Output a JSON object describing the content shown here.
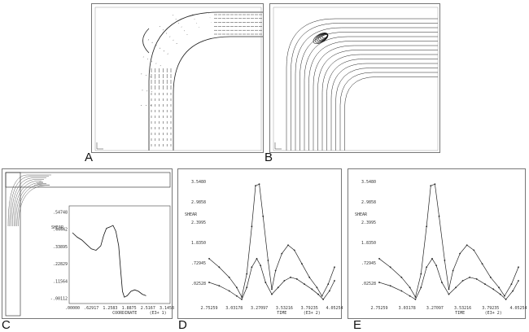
{
  "panels": {
    "A": {
      "letter": "A"
    },
    "B": {
      "letter": "B"
    },
    "C": {
      "letter": "C",
      "inset_xlabel": "COORDINATE",
      "inset_xunit": "(E3+ 1)",
      "inset_ylabel": "SHEAR",
      "inset_yticks": [
        ".54748",
        ".44442",
        ".33895",
        ".22829",
        ".11564",
        "-.00112"
      ],
      "inset_xticks": [
        ".00000",
        ".62917",
        "1.2583",
        "1.8875",
        "2.5167",
        "3.1458"
      ],
      "curve": [
        [
          0.0,
          0.45
        ],
        [
          0.05,
          0.42
        ],
        [
          0.1,
          0.4
        ],
        [
          0.15,
          0.37
        ],
        [
          0.2,
          0.34
        ],
        [
          0.25,
          0.33
        ],
        [
          0.3,
          0.36
        ],
        [
          0.33,
          0.43
        ],
        [
          0.36,
          0.48
        ],
        [
          0.4,
          0.49
        ],
        [
          0.43,
          0.5
        ],
        [
          0.46,
          0.46
        ],
        [
          0.49,
          0.36
        ],
        [
          0.51,
          0.2
        ],
        [
          0.53,
          0.05
        ],
        [
          0.55,
          0.01
        ],
        [
          0.58,
          0.02
        ],
        [
          0.62,
          0.05
        ],
        [
          0.66,
          0.06
        ],
        [
          0.7,
          0.05
        ],
        [
          0.74,
          0.03
        ],
        [
          0.78,
          0.02
        ]
      ]
    },
    "D": {
      "letter": "D",
      "ylabel": "SHEAR",
      "xlabel": "TIME",
      "xunit": "(E3+ 2)",
      "yticks": [
        "3.5480",
        "2.9858",
        "2.3995",
        "1.8350",
        ".72945",
        ".02528"
      ],
      "xticks": [
        "2.75259",
        "3.03178",
        "3.27097",
        "3.53216",
        "3.79235",
        "4.05254"
      ]
    },
    "E": {
      "letter": "E",
      "ylabel": "SHEAR",
      "xlabel": "TIME",
      "xunit": "(E3+ 2)",
      "yticks": [
        "3.5480",
        "2.9858",
        "2.3995",
        "1.8350",
        ".72945",
        ".02528"
      ],
      "xticks": [
        "2.75259",
        "3.03178",
        "3.27097",
        "3.53216",
        "3.79235",
        "4.05254"
      ]
    }
  },
  "time_series": {
    "upper": [
      [
        0.0,
        1.25
      ],
      [
        0.08,
        1.0
      ],
      [
        0.16,
        0.7
      ],
      [
        0.22,
        0.4
      ],
      [
        0.26,
        0.12
      ],
      [
        0.3,
        0.8
      ],
      [
        0.34,
        2.2
      ],
      [
        0.37,
        3.4
      ],
      [
        0.4,
        3.45
      ],
      [
        0.43,
        2.5
      ],
      [
        0.47,
        1.2
      ],
      [
        0.5,
        0.35
      ],
      [
        0.53,
        0.9
      ],
      [
        0.58,
        1.4
      ],
      [
        0.63,
        1.65
      ],
      [
        0.68,
        1.5
      ],
      [
        0.74,
        1.1
      ],
      [
        0.8,
        0.7
      ],
      [
        0.86,
        0.4
      ],
      [
        0.9,
        0.15
      ],
      [
        0.95,
        0.5
      ],
      [
        1.0,
        1.0
      ]
    ],
    "lower": [
      [
        0.0,
        0.55
      ],
      [
        0.08,
        0.45
      ],
      [
        0.16,
        0.3
      ],
      [
        0.22,
        0.15
      ],
      [
        0.26,
        0.05
      ],
      [
        0.3,
        0.4
      ],
      [
        0.34,
        1.0
      ],
      [
        0.38,
        1.25
      ],
      [
        0.41,
        1.05
      ],
      [
        0.45,
        0.55
      ],
      [
        0.5,
        0.2
      ],
      [
        0.55,
        0.4
      ],
      [
        0.6,
        0.6
      ],
      [
        0.65,
        0.7
      ],
      [
        0.7,
        0.65
      ],
      [
        0.76,
        0.5
      ],
      [
        0.82,
        0.35
      ],
      [
        0.87,
        0.2
      ],
      [
        0.91,
        0.05
      ],
      [
        0.96,
        0.3
      ],
      [
        1.0,
        0.6
      ]
    ]
  }
}
